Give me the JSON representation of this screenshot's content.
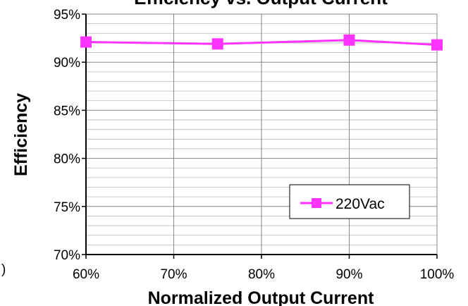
{
  "chart_data": {
    "type": "line",
    "title": "Efficiency vs. Output Current",
    "xlabel": "Normalized Output Current",
    "ylabel": "Efficiency",
    "xlim": [
      60,
      100
    ],
    "ylim": [
      70,
      95
    ],
    "x_ticks": [
      "60%",
      "70%",
      "80%",
      "90%",
      "100%"
    ],
    "y_ticks": [
      "70%",
      "75%",
      "80%",
      "85%",
      "90%",
      "95%"
    ],
    "grid": true,
    "legend_position": "bottom-right",
    "series": [
      {
        "name": "220Vac",
        "color": "#ff33ff",
        "marker": "square",
        "x": [
          60,
          75,
          90,
          100
        ],
        "y": [
          92.1,
          91.9,
          92.3,
          91.8
        ]
      }
    ]
  },
  "stray_mark": ")"
}
